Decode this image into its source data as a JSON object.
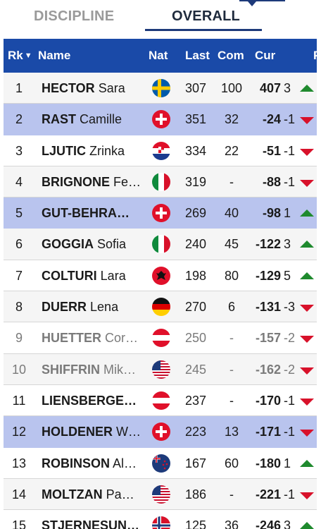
{
  "tabs": {
    "discipline": "DISCIPLINE",
    "overall": "OVERALL",
    "active": "overall"
  },
  "table": {
    "headers": {
      "rank": "Rk",
      "name": "Name",
      "nat": "Nat",
      "last": "Last",
      "com": "Com",
      "cur": "Cur",
      "p": "P"
    },
    "rows": [
      {
        "rank": "1",
        "last_name": "HECTOR",
        "first_name": "Sara",
        "nat": "swe",
        "last": "307",
        "com": "100",
        "cur": "407",
        "diff": "3",
        "trend": "up",
        "style": "alt"
      },
      {
        "rank": "2",
        "last_name": "RAST",
        "first_name": "Camille",
        "nat": "sui",
        "last": "351",
        "com": "32",
        "cur": "-24",
        "diff": "-1",
        "trend": "down",
        "style": "hl"
      },
      {
        "rank": "3",
        "last_name": "LJUTIC",
        "first_name": "Zrinka",
        "nat": "cro",
        "last": "334",
        "com": "22",
        "cur": "-51",
        "diff": "-1",
        "trend": "down",
        "style": ""
      },
      {
        "rank": "4",
        "last_name": "BRIGNONE",
        "first_name": "Fe…",
        "nat": "ita",
        "last": "319",
        "com": "-",
        "cur": "-88",
        "diff": "-1",
        "trend": "down",
        "style": "alt"
      },
      {
        "rank": "5",
        "last_name": "GUT-BEHRA…",
        "first_name": "",
        "nat": "sui",
        "last": "269",
        "com": "40",
        "cur": "-98",
        "diff": "1",
        "trend": "up",
        "style": "hl"
      },
      {
        "rank": "6",
        "last_name": "GOGGIA",
        "first_name": "Sofia",
        "nat": "ita",
        "last": "240",
        "com": "45",
        "cur": "-122",
        "diff": "3",
        "trend": "up",
        "style": "alt"
      },
      {
        "rank": "7",
        "last_name": "COLTURI",
        "first_name": "Lara",
        "nat": "alb",
        "last": "198",
        "com": "80",
        "cur": "-129",
        "diff": "5",
        "trend": "up",
        "style": ""
      },
      {
        "rank": "8",
        "last_name": "DUERR",
        "first_name": "Lena",
        "nat": "ger",
        "last": "270",
        "com": "6",
        "cur": "-131",
        "diff": "-3",
        "trend": "down",
        "style": "alt"
      },
      {
        "rank": "9",
        "last_name": "HUETTER",
        "first_name": "Cor…",
        "nat": "aut",
        "last": "250",
        "com": "-",
        "cur": "-157",
        "diff": "-2",
        "trend": "down",
        "style": "dim"
      },
      {
        "rank": "10",
        "last_name": "SHIFFRIN",
        "first_name": "Mik…",
        "nat": "usa",
        "last": "245",
        "com": "-",
        "cur": "-162",
        "diff": "-2",
        "trend": "down",
        "style": "alt dim"
      },
      {
        "rank": "11",
        "last_name": "LIENSBERGE…",
        "first_name": "",
        "nat": "aut",
        "last": "237",
        "com": "-",
        "cur": "-170",
        "diff": "-1",
        "trend": "down",
        "style": ""
      },
      {
        "rank": "12",
        "last_name": "HOLDENER",
        "first_name": "W…",
        "nat": "sui",
        "last": "223",
        "com": "13",
        "cur": "-171",
        "diff": "-1",
        "trend": "down",
        "style": "hl"
      },
      {
        "rank": "13",
        "last_name": "ROBINSON",
        "first_name": "Al…",
        "nat": "nzl",
        "last": "167",
        "com": "60",
        "cur": "-180",
        "diff": "1",
        "trend": "up",
        "style": ""
      },
      {
        "rank": "14",
        "last_name": "MOLTZAN",
        "first_name": "Pa…",
        "nat": "usa",
        "last": "186",
        "com": "-",
        "cur": "-221",
        "diff": "-1",
        "trend": "down",
        "style": "alt"
      },
      {
        "rank": "15",
        "last_name": "STJERNESUN…",
        "first_name": "",
        "nat": "nor",
        "last": "125",
        "com": "36",
        "cur": "-246",
        "diff": "3",
        "trend": "up",
        "style": ""
      }
    ]
  },
  "colors": {
    "header_bg": "#1a4aa8",
    "highlight_row": "#b9c4ee",
    "up": "#1f8a2e",
    "down": "#d8112a"
  }
}
